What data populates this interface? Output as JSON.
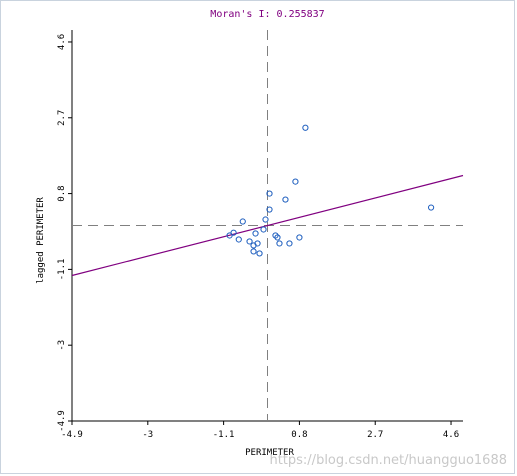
{
  "chart_data": {
    "type": "scatter",
    "title": "Moran's I: 0.255837",
    "xlabel": "PERIMETER",
    "ylabel": "lagged PERIMETER",
    "xlim": [
      -4.9,
      4.9
    ],
    "ylim": [
      -4.9,
      4.9
    ],
    "x_ticks": [
      "-4.9",
      "-3",
      "-1.1",
      "0.8",
      "2.7",
      "4.6"
    ],
    "y_ticks": [
      "-4.9",
      "-3",
      "-1.1",
      "0.8",
      "2.7",
      "4.6"
    ],
    "reference_lines": {
      "x": 0,
      "y": 0
    },
    "regression": {
      "slope": 0.255837,
      "intercept": 0
    },
    "points": [
      {
        "x": -0.95,
        "y": -0.25
      },
      {
        "x": -0.85,
        "y": -0.18
      },
      {
        "x": -0.72,
        "y": -0.35
      },
      {
        "x": -0.62,
        "y": 0.1
      },
      {
        "x": -0.45,
        "y": -0.4
      },
      {
        "x": -0.3,
        "y": -0.2
      },
      {
        "x": -0.25,
        "y": -0.45
      },
      {
        "x": -0.2,
        "y": -0.7
      },
      {
        "x": -0.35,
        "y": -0.65
      },
      {
        "x": -0.1,
        "y": -0.1
      },
      {
        "x": -0.05,
        "y": 0.15
      },
      {
        "x": 0.05,
        "y": 0.4
      },
      {
        "x": 0.05,
        "y": 0.8
      },
      {
        "x": 0.2,
        "y": -0.25
      },
      {
        "x": 0.3,
        "y": -0.45
      },
      {
        "x": 0.25,
        "y": -0.3
      },
      {
        "x": 0.55,
        "y": -0.45
      },
      {
        "x": 0.45,
        "y": 0.65
      },
      {
        "x": 0.7,
        "y": 1.1
      },
      {
        "x": 0.8,
        "y": -0.3
      },
      {
        "x": 0.95,
        "y": 2.45
      },
      {
        "x": 4.1,
        "y": 0.45
      },
      {
        "x": -0.35,
        "y": -0.5
      }
    ],
    "colors": {
      "points": "#1f5fbf",
      "regression": "#800080",
      "reference": "#808080",
      "title": "#800080"
    }
  },
  "watermark": "https://blog.csdn.net/huangguo1688"
}
